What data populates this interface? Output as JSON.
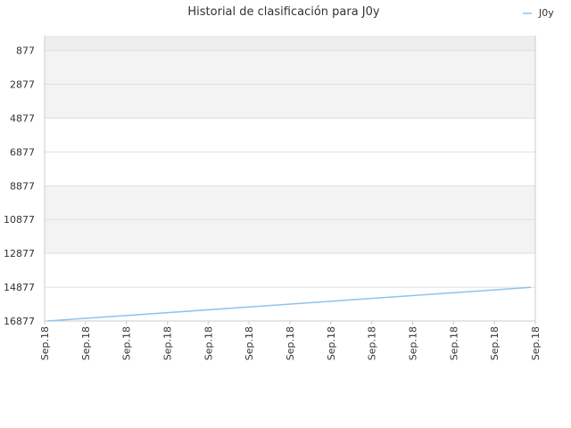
{
  "chart_data": {
    "type": "line",
    "title": "Historial de clasificación para J0y",
    "xlabel": "",
    "ylabel": "",
    "y_reversed": true,
    "ylim": [
      16877,
      0
    ],
    "y_ticks": [
      877,
      2877,
      4877,
      6877,
      8877,
      10877,
      12877,
      14877,
      16877
    ],
    "y_tick_labels": [
      "877",
      "2877",
      "4877",
      "6877",
      "8877",
      "10877",
      "12877",
      "14877",
      "16877"
    ],
    "x_tick_labels": [
      "Sep.18",
      "Sep.18",
      "Sep.18",
      "Sep.18",
      "Sep.18",
      "Sep.18",
      "Sep.18",
      "Sep.18",
      "Sep.18",
      "Sep.18",
      "Sep.18",
      "Sep.18",
      "Sep.18"
    ],
    "legend": "top-right",
    "grid": true,
    "colors": {
      "series": "#90c3ec",
      "band_alt": "#f3f3f3",
      "band_top": "#eeeeee",
      "grid": "#e0e0e0",
      "axis": "#cccccc"
    },
    "series": [
      {
        "name": "J0y",
        "values": [
          16877,
          14887
        ]
      }
    ]
  }
}
